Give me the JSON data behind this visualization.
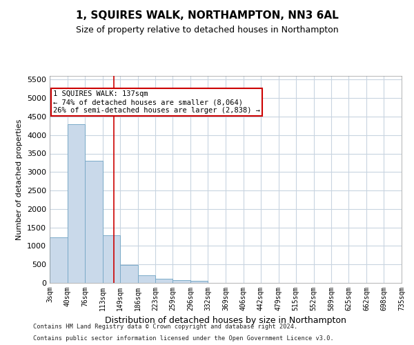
{
  "title": "1, SQUIRES WALK, NORTHAMPTON, NN3 6AL",
  "subtitle": "Size of property relative to detached houses in Northampton",
  "xlabel": "Distribution of detached houses by size in Northampton",
  "ylabel": "Number of detached properties",
  "footer_line1": "Contains HM Land Registry data © Crown copyright and database right 2024.",
  "footer_line2": "Contains public sector information licensed under the Open Government Licence v3.0.",
  "bar_color": "#c9d9ea",
  "bar_edge_color": "#7aaac8",
  "grid_color": "#c8d4e0",
  "annotation_text": "1 SQUIRES WALK: 137sqm\n← 74% of detached houses are smaller (8,064)\n26% of semi-detached houses are larger (2,838) →",
  "annotation_box_color": "#ffffff",
  "annotation_box_edge": "#cc0000",
  "property_line_x": 137,
  "property_line_color": "#cc0000",
  "bin_edges": [
    3,
    40,
    76,
    113,
    149,
    186,
    223,
    259,
    296,
    332,
    369,
    406,
    442,
    479,
    515,
    552,
    589,
    625,
    662,
    698,
    735
  ],
  "bar_heights": [
    1230,
    4300,
    3300,
    1280,
    480,
    200,
    105,
    70,
    55,
    0,
    0,
    0,
    0,
    0,
    0,
    0,
    0,
    0,
    0,
    0
  ],
  "ylim": [
    0,
    5600
  ],
  "yticks": [
    0,
    500,
    1000,
    1500,
    2000,
    2500,
    3000,
    3500,
    4000,
    4500,
    5000,
    5500
  ],
  "figsize": [
    6.0,
    5.0
  ],
  "dpi": 100
}
